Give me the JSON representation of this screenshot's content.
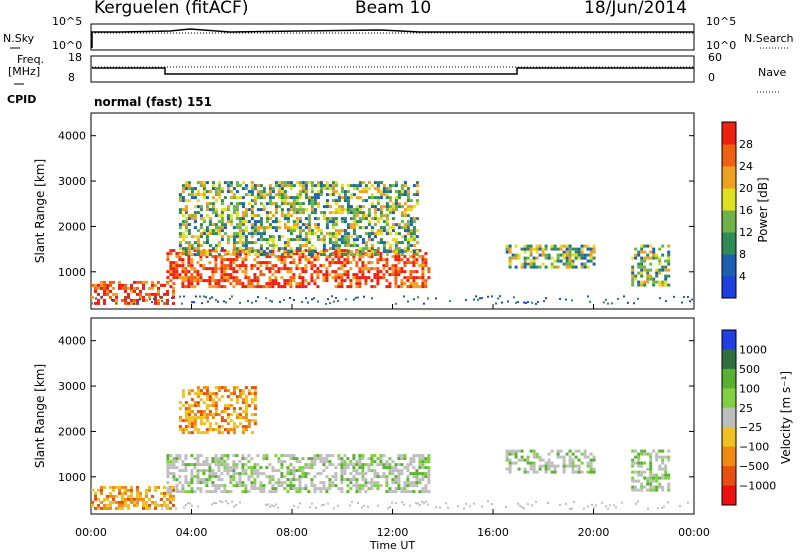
{
  "header": {
    "station": "Kerguelen (fitACF)",
    "beam": "Beam 10",
    "date": "18/Jun/2014"
  },
  "status": {
    "nsky_label": "N.Sky",
    "nsearch_label": "N.Search",
    "freq_label_1": "Freq.",
    "freq_label_2": "[MHz]",
    "nave_label": "Nave",
    "cpid_label": "CPID",
    "program": "normal (fast) 151",
    "noise_ticks_left": [
      "10^5",
      "10^0"
    ],
    "noise_ticks_right": [
      "10^5",
      "10^0"
    ],
    "freq_ticks": [
      "18",
      "8"
    ],
    "nave_ticks": [
      "60",
      "0"
    ]
  },
  "chart_data": [
    {
      "type": "heatmap",
      "quantity": "Power",
      "ylabel": "Slant Range [km]",
      "ylim": [
        180,
        4500
      ],
      "yticks": [
        "1000",
        "2000",
        "3000",
        "4000"
      ],
      "xlim_hours": [
        0,
        24
      ],
      "colorbar_label": "Power [dB]",
      "colorbar_ticks": [
        "4",
        "8",
        "12",
        "16",
        "20",
        "24",
        "28"
      ],
      "colorbar_colors": [
        "#1f3fe0",
        "#1d5fb0",
        "#2e8b57",
        "#6fb24a",
        "#e0e020",
        "#f0a020",
        "#f06010",
        "#ee2010"
      ],
      "regions": [
        {
          "t": [
            0,
            3.3
          ],
          "r": [
            300,
            800
          ],
          "level": "high"
        },
        {
          "t": [
            3.0,
            13.5
          ],
          "r": [
            700,
            1500
          ],
          "level": "high"
        },
        {
          "t": [
            3.5,
            13.0
          ],
          "r": [
            1400,
            3000
          ],
          "level": "medium"
        },
        {
          "t": [
            16.5,
            20.0
          ],
          "r": [
            1100,
            1600
          ],
          "level": "medium"
        },
        {
          "t": [
            21.5,
            23.0
          ],
          "r": [
            700,
            1600
          ],
          "level": "medium"
        }
      ]
    },
    {
      "type": "heatmap",
      "quantity": "Velocity",
      "ylabel": "Slant Range [km]",
      "ylim": [
        180,
        4500
      ],
      "yticks": [
        "1000",
        "2000",
        "3000",
        "4000"
      ],
      "xlim_hours": [
        0,
        24
      ],
      "xticks": [
        "00:00",
        "04:00",
        "08:00",
        "12:00",
        "16:00",
        "20:00",
        "00:00"
      ],
      "xlabel": "Time UT",
      "colorbar_label": "Velocity [m s⁻¹]",
      "colorbar_ticks": [
        "1000",
        "500",
        "100",
        "25",
        "−25",
        "−100",
        "−500",
        "−1000"
      ],
      "colorbar_colors": [
        "#1f3fe0",
        "#2e7040",
        "#5ab030",
        "#7fd040",
        "#bebebe",
        "#f0c020",
        "#f08a10",
        "#e85010",
        "#ee1010"
      ],
      "regions": [
        {
          "t": [
            0,
            3.3
          ],
          "r": [
            300,
            800
          ],
          "level": "receding"
        },
        {
          "t": [
            3.0,
            13.5
          ],
          "r": [
            700,
            1500
          ],
          "level": "ground"
        },
        {
          "t": [
            3.5,
            6.5
          ],
          "r": [
            2000,
            3000
          ],
          "level": "receding"
        },
        {
          "t": [
            16.5,
            20.0
          ],
          "r": [
            1100,
            1600
          ],
          "level": "ground"
        },
        {
          "t": [
            21.5,
            23.0
          ],
          "r": [
            700,
            1600
          ],
          "level": "ground"
        }
      ]
    }
  ]
}
